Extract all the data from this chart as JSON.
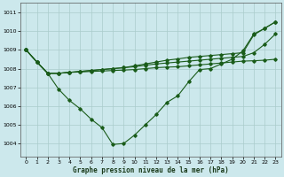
{
  "bg_color": "#cce8ec",
  "grid_color": "#aacccc",
  "line_color": "#1a5c1a",
  "xlabel": "Graphe pression niveau de la mer (hPa)",
  "xlim": [
    -0.5,
    23.5
  ],
  "ylim": [
    1003.3,
    1011.5
  ],
  "yticks": [
    1004,
    1005,
    1006,
    1007,
    1008,
    1009,
    1010,
    1011
  ],
  "xticks": [
    0,
    1,
    2,
    3,
    4,
    5,
    6,
    7,
    8,
    9,
    10,
    11,
    12,
    13,
    14,
    15,
    16,
    17,
    18,
    19,
    20,
    21,
    22,
    23
  ],
  "s1_x": [
    0,
    1,
    2,
    3,
    4,
    5,
    6,
    7,
    8,
    9,
    10,
    11,
    12,
    13,
    14,
    15,
    16,
    17,
    18,
    19,
    20,
    21,
    22,
    23
  ],
  "s1_y": [
    1009.0,
    1008.35,
    1007.75,
    1006.9,
    1006.3,
    1005.85,
    1005.3,
    1004.85,
    1003.95,
    1004.0,
    1004.45,
    1005.0,
    1005.55,
    1006.2,
    1006.55,
    1007.3,
    1007.95,
    1008.0,
    1008.25,
    1008.5,
    1008.95,
    1009.85,
    1010.15,
    1010.5
  ],
  "s2_x": [
    0,
    1,
    2,
    3,
    4,
    5,
    6,
    7,
    8,
    9,
    10,
    11,
    12,
    13,
    14,
    15,
    16,
    17,
    18,
    19,
    20,
    21,
    22,
    23
  ],
  "s2_y": [
    1009.0,
    1008.35,
    1007.75,
    1007.75,
    1007.8,
    1007.82,
    1007.85,
    1007.87,
    1007.9,
    1007.92,
    1007.95,
    1008.0,
    1008.05,
    1008.08,
    1008.1,
    1008.15,
    1008.2,
    1008.25,
    1008.3,
    1008.35,
    1008.4,
    1008.42,
    1008.45,
    1008.5
  ],
  "s3_x": [
    0,
    1,
    2,
    3,
    4,
    5,
    6,
    7,
    8,
    9,
    10,
    11,
    12,
    13,
    14,
    15,
    16,
    17,
    18,
    19,
    20,
    21,
    22,
    23
  ],
  "s3_y": [
    1009.0,
    1008.35,
    1007.75,
    1007.75,
    1007.8,
    1007.85,
    1007.9,
    1007.95,
    1008.0,
    1008.05,
    1008.1,
    1008.18,
    1008.25,
    1008.3,
    1008.35,
    1008.4,
    1008.45,
    1008.5,
    1008.55,
    1008.6,
    1008.65,
    1008.85,
    1009.3,
    1009.85
  ],
  "s4_x": [
    0,
    1,
    2,
    3,
    4,
    5,
    6,
    7,
    8,
    9,
    10,
    11,
    12,
    13,
    14,
    15,
    16,
    17,
    18,
    19,
    20,
    21,
    22,
    23
  ],
  "s4_y": [
    1009.0,
    1008.35,
    1007.75,
    1007.75,
    1007.8,
    1007.85,
    1007.9,
    1007.95,
    1008.0,
    1008.05,
    1008.15,
    1008.25,
    1008.35,
    1008.45,
    1008.52,
    1008.6,
    1008.65,
    1008.7,
    1008.75,
    1008.8,
    1008.85,
    1009.8,
    1010.15,
    1010.5
  ]
}
